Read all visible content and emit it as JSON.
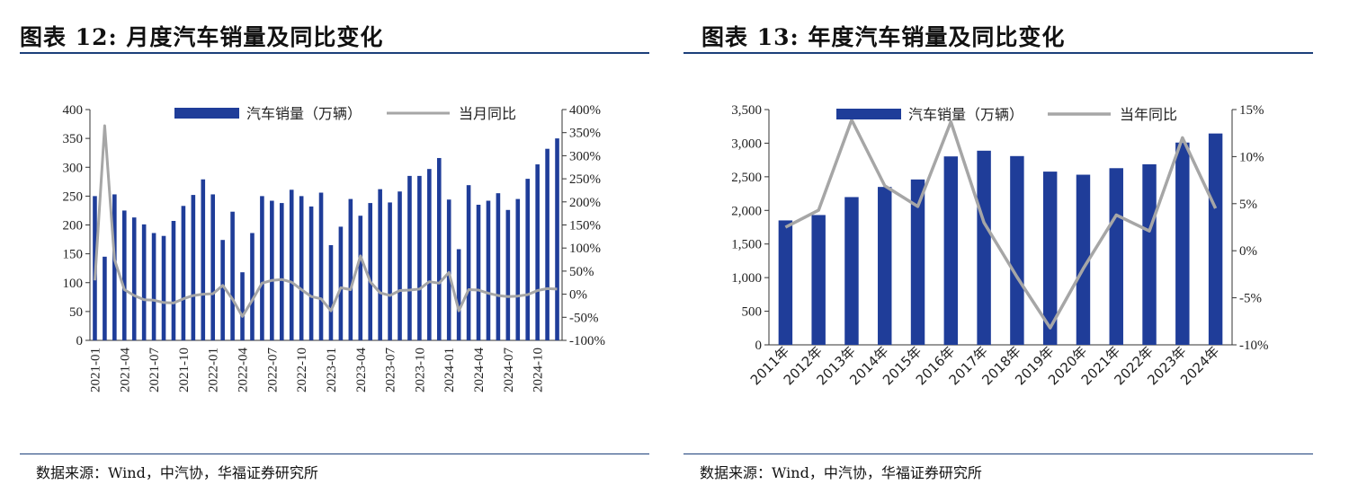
{
  "panels": {
    "left": {
      "title": "图表 12:  月度汽车销量及同比变化",
      "source": "数据来源：Wind，中汽协，华福证券研究所"
    },
    "right": {
      "title": "图表 13:  年度汽车销量及同比变化",
      "source": "数据来源：Wind，中汽协，华福证券研究所"
    }
  },
  "chart_data": [
    {
      "type": "bar",
      "title": "",
      "legend_placement": "top",
      "x": [
        "2021-01",
        "2021-02",
        "2021-03",
        "2021-04",
        "2021-05",
        "2021-06",
        "2021-07",
        "2021-08",
        "2021-09",
        "2021-10",
        "2021-11",
        "2021-12",
        "2022-01",
        "2022-02",
        "2022-03",
        "2022-04",
        "2022-05",
        "2022-06",
        "2022-07",
        "2022-08",
        "2022-09",
        "2022-10",
        "2022-11",
        "2022-12",
        "2023-01",
        "2023-02",
        "2023-03",
        "2023-04",
        "2023-05",
        "2023-06",
        "2023-07",
        "2023-08",
        "2023-09",
        "2023-10",
        "2023-11",
        "2023-12",
        "2024-01",
        "2024-02",
        "2024-03",
        "2024-04",
        "2024-05",
        "2024-06",
        "2024-07",
        "2024-08",
        "2024-09",
        "2024-10",
        "2024-11",
        "2024-12"
      ],
      "x_tick_labels": [
        "2021-01",
        "2021-04",
        "2021-07",
        "2021-10",
        "2022-01",
        "2022-04",
        "2022-07",
        "2022-10",
        "2023-01",
        "2023-04",
        "2023-07",
        "2023-10",
        "2024-01",
        "2024-04",
        "2024-07",
        "2024-10"
      ],
      "series": [
        {
          "name": "汽车销量（万辆）",
          "kind": "bar",
          "axis": "left",
          "color": "#1f3d99",
          "values": [
            250,
            145,
            253,
            225,
            213,
            201,
            186,
            181,
            207,
            233,
            252,
            279,
            253,
            174,
            223,
            118,
            186,
            250,
            242,
            238,
            261,
            250,
            232,
            256,
            165,
            197,
            245,
            216,
            238,
            262,
            239,
            258,
            285,
            285,
            297,
            316,
            244,
            158,
            269,
            235,
            242,
            255,
            226,
            245,
            280,
            305,
            332,
            350
          ]
        },
        {
          "name": "当月同比",
          "kind": "line",
          "axis": "right",
          "color": "#a6a6a6",
          "values": [
            30,
            365,
            75,
            10,
            -3,
            -12,
            -13,
            -18,
            -19,
            -10,
            -3,
            0,
            1,
            19,
            -11,
            -48,
            -13,
            24,
            30,
            32,
            26,
            10,
            -5,
            -10,
            -36,
            14,
            10,
            83,
            27,
            3,
            -3,
            8,
            9,
            11,
            27,
            24,
            47,
            -36,
            10,
            9,
            2,
            -3,
            -5,
            -4,
            -1,
            8,
            12,
            11
          ]
        }
      ],
      "y_left": {
        "range": [
          0,
          400
        ],
        "ticks": [
          0,
          50,
          100,
          150,
          200,
          250,
          300,
          350,
          400
        ]
      },
      "y_right": {
        "range": [
          -100,
          400
        ],
        "ticks": [
          -100,
          -50,
          0,
          50,
          100,
          150,
          200,
          250,
          300,
          350,
          400
        ],
        "unit": "%"
      }
    },
    {
      "type": "bar",
      "title": "",
      "legend_placement": "top",
      "x": [
        "2011年",
        "2012年",
        "2013年",
        "2014年",
        "2015年",
        "2016年",
        "2017年",
        "2018年",
        "2019年",
        "2020年",
        "2021年",
        "2022年",
        "2023年",
        "2024年"
      ],
      "series": [
        {
          "name": "汽车销量（万辆）",
          "kind": "bar",
          "axis": "left",
          "color": "#1f3d99",
          "values": [
            1851,
            1931,
            2198,
            2349,
            2460,
            2803,
            2888,
            2808,
            2577,
            2531,
            2628,
            2686,
            3009,
            3144
          ]
        },
        {
          "name": "当年同比",
          "kind": "line",
          "axis": "right",
          "color": "#a6a6a6",
          "values": [
            2.5,
            4.3,
            13.9,
            6.9,
            4.7,
            13.7,
            3.0,
            -2.8,
            -8.2,
            -1.9,
            3.8,
            2.1,
            12.0,
            4.5
          ]
        }
      ],
      "y_left": {
        "range": [
          0,
          3500
        ],
        "ticks": [
          0,
          500,
          1000,
          1500,
          2000,
          2500,
          3000,
          3500
        ]
      },
      "y_right": {
        "range": [
          -10,
          15
        ],
        "ticks": [
          -10,
          -5,
          0,
          5,
          10,
          15
        ],
        "unit": "%"
      }
    }
  ]
}
